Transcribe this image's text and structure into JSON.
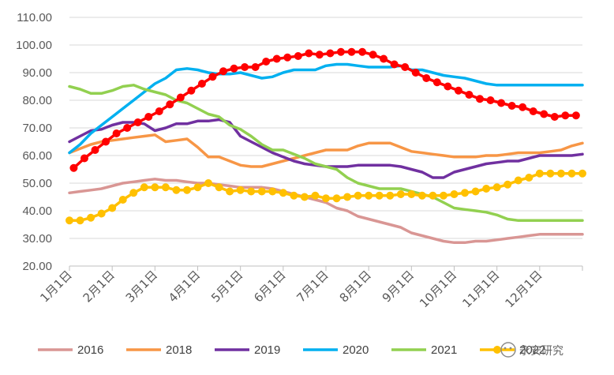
{
  "chart_data": {
    "type": "line",
    "ylim": [
      20,
      110
    ],
    "yticks": [
      "20.00",
      "30.00",
      "40.00",
      "50.00",
      "60.00",
      "70.00",
      "80.00",
      "90.00",
      "100.00",
      "110.00"
    ],
    "xticks": [
      "1月1日",
      "2月1日",
      "3月1日",
      "4月1日",
      "5月1日",
      "6月1日",
      "7月1日",
      "8月1日",
      "9月1日",
      "10月1日",
      "11月1日",
      "12月1日"
    ],
    "grid": "horizontal",
    "legend_position": "bottom",
    "series": [
      {
        "name": "2016",
        "color": "#d99694",
        "markers": false,
        "x": [
          0,
          0.25,
          0.5,
          0.75,
          1,
          1.25,
          1.5,
          1.75,
          2,
          2.25,
          2.5,
          2.75,
          3,
          3.25,
          3.5,
          3.75,
          4,
          4.25,
          4.5,
          4.75,
          5,
          5.25,
          5.5,
          5.75,
          6,
          6.25,
          6.5,
          6.75,
          7,
          7.25,
          7.5,
          7.75,
          8,
          8.25,
          8.5,
          8.75,
          9,
          9.25,
          9.5,
          9.75,
          10,
          10.25,
          10.5,
          10.75,
          11,
          11.25,
          11.5,
          11.75,
          12
        ],
        "values": [
          46.5,
          47,
          47.5,
          48,
          49,
          50,
          50.5,
          51,
          51.5,
          51,
          51,
          50.5,
          50,
          50,
          49.5,
          49,
          48.5,
          48.5,
          48.5,
          48,
          47,
          46,
          45,
          44,
          43,
          41,
          40,
          38,
          37,
          36,
          35,
          34,
          32,
          31,
          30,
          29,
          28.5,
          28.5,
          29,
          29,
          29.5,
          30,
          30.5,
          31,
          31.5,
          31.5,
          31.5,
          31.5,
          31.5
        ]
      },
      {
        "name": "2018",
        "color": "#f79646",
        "markers": false,
        "x": [
          0,
          0.25,
          0.5,
          0.75,
          1,
          1.25,
          1.5,
          1.75,
          2,
          2.25,
          2.5,
          2.75,
          3,
          3.25,
          3.5,
          3.75,
          4,
          4.25,
          4.5,
          4.75,
          5,
          5.25,
          5.5,
          5.75,
          6,
          6.25,
          6.5,
          6.75,
          7,
          7.25,
          7.5,
          7.75,
          8,
          8.25,
          8.5,
          8.75,
          9,
          9.25,
          9.5,
          9.75,
          10,
          10.25,
          10.5,
          10.75,
          11,
          11.25,
          11.5,
          11.75,
          12
        ],
        "values": [
          61,
          62.5,
          64,
          65,
          65.5,
          66,
          66.5,
          67,
          67.5,
          65,
          65.5,
          66,
          63,
          59.5,
          59.5,
          58,
          56.5,
          56,
          56,
          57,
          58,
          59,
          60,
          61,
          62,
          62,
          62,
          63.5,
          64.5,
          64.5,
          64.5,
          63,
          61.5,
          61,
          60.5,
          60,
          59.5,
          59.5,
          59.5,
          60,
          60,
          60.5,
          61,
          61,
          61,
          61.5,
          62,
          63.5,
          64.5
        ]
      },
      {
        "name": "2019",
        "color": "#7030a0",
        "markers": false,
        "x": [
          0,
          0.25,
          0.5,
          0.75,
          1,
          1.25,
          1.5,
          1.75,
          2,
          2.25,
          2.5,
          2.75,
          3,
          3.25,
          3.5,
          3.75,
          4,
          4.25,
          4.5,
          4.75,
          5,
          5.25,
          5.5,
          5.75,
          6,
          6.25,
          6.5,
          6.75,
          7,
          7.25,
          7.5,
          7.75,
          8,
          8.25,
          8.5,
          8.75,
          9,
          9.25,
          9.5,
          9.75,
          10,
          10.25,
          10.5,
          10.75,
          11,
          11.25,
          11.5,
          11.75,
          12
        ],
        "values": [
          65,
          67,
          69,
          69.5,
          71,
          72,
          72,
          71.5,
          69,
          70,
          71.5,
          71.5,
          72.5,
          72.5,
          73,
          72,
          67,
          65,
          63,
          61,
          59.5,
          58,
          57,
          56.5,
          56,
          56,
          56,
          56.5,
          56.5,
          56.5,
          56.5,
          56,
          55,
          54,
          52,
          52,
          54,
          55,
          56,
          57,
          57.5,
          58,
          58,
          59,
          60,
          60,
          60,
          60,
          60.5
        ]
      },
      {
        "name": "2020",
        "color": "#00b0f0",
        "markers": false,
        "x": [
          0,
          0.25,
          0.5,
          0.75,
          1,
          1.25,
          1.5,
          1.75,
          2,
          2.25,
          2.5,
          2.75,
          3,
          3.25,
          3.5,
          3.75,
          4,
          4.25,
          4.5,
          4.75,
          5,
          5.25,
          5.5,
          5.75,
          6,
          6.25,
          6.5,
          6.75,
          7,
          7.25,
          7.5,
          7.75,
          8,
          8.25,
          8.5,
          8.75,
          9,
          9.25,
          9.5,
          9.75,
          10,
          10.25,
          10.5,
          10.75,
          11,
          11.25,
          11.5,
          11.75,
          12
        ],
        "values": [
          61,
          64,
          68,
          71,
          74,
          77,
          80,
          83,
          86,
          88,
          91,
          91.5,
          91,
          90,
          89.5,
          89.5,
          90,
          89,
          88,
          88.5,
          90,
          91,
          91,
          91,
          92.5,
          93,
          93,
          92.5,
          92,
          92,
          92,
          92.5,
          91,
          91,
          90,
          89,
          88.5,
          88,
          87,
          86,
          85.5,
          85.5,
          85.5,
          85.5,
          85.5,
          85.5,
          85.5,
          85.5,
          85.5
        ]
      },
      {
        "name": "2021",
        "color": "#92d050",
        "markers": false,
        "x": [
          0,
          0.25,
          0.5,
          0.75,
          1,
          1.25,
          1.5,
          1.75,
          2,
          2.25,
          2.5,
          2.75,
          3,
          3.25,
          3.5,
          3.75,
          4,
          4.25,
          4.5,
          4.75,
          5,
          5.25,
          5.5,
          5.75,
          6,
          6.25,
          6.5,
          6.75,
          7,
          7.25,
          7.5,
          7.75,
          8,
          8.25,
          8.5,
          8.75,
          9,
          9.25,
          9.5,
          9.75,
          10,
          10.25,
          10.5,
          10.75,
          11,
          11.25,
          11.5,
          11.75,
          12
        ],
        "values": [
          85,
          84,
          82.5,
          82.5,
          83.5,
          85,
          85.5,
          84,
          83,
          82,
          80,
          79,
          77,
          75,
          74,
          71,
          69.5,
          67,
          64,
          62,
          62,
          60.5,
          59,
          57,
          56,
          55,
          52,
          50,
          49,
          48,
          48,
          48,
          47,
          46,
          45,
          43,
          41,
          40.5,
          40,
          39.5,
          38.5,
          37,
          36.5,
          36.5,
          36.5,
          36.5,
          36.5,
          36.5,
          36.5
        ]
      },
      {
        "name": "2022",
        "color": "#ffc000",
        "markers": true,
        "x": [
          0,
          0.25,
          0.5,
          0.75,
          1,
          1.25,
          1.5,
          1.75,
          2,
          2.25,
          2.5,
          2.75,
          3,
          3.25,
          3.5,
          3.75,
          4,
          4.25,
          4.5,
          4.75,
          5,
          5.25,
          5.5,
          5.75,
          6,
          6.25,
          6.5,
          6.75,
          7,
          7.25,
          7.5,
          7.75,
          8,
          8.25,
          8.5,
          8.75,
          9,
          9.25,
          9.5,
          9.75,
          10,
          10.25,
          10.5,
          10.75,
          11,
          11.25,
          11.5,
          11.75,
          12
        ],
        "values": [
          36.5,
          36.5,
          37.5,
          39,
          41,
          44,
          46.5,
          48.5,
          48.5,
          48.5,
          47.5,
          47.5,
          48.5,
          50,
          48.5,
          47,
          47.5,
          47,
          47,
          47,
          46.5,
          45.5,
          45,
          45.5,
          44.5,
          44.5,
          45,
          45.5,
          45.5,
          45.5,
          45.5,
          46,
          46,
          45.5,
          45.5,
          45.5,
          46,
          46.5,
          47,
          48,
          48.5,
          49.5,
          51,
          52,
          53.5,
          53.5,
          53.5,
          53.5,
          53.5
        ]
      },
      {
        "name": "2022-red",
        "color": "#ff0000",
        "markers": true,
        "legend": false,
        "x": [
          0.1,
          0.35,
          0.6,
          0.85,
          1.1,
          1.35,
          1.6,
          1.85,
          2.1,
          2.35,
          2.6,
          2.85,
          3.1,
          3.35,
          3.6,
          3.85,
          4.1,
          4.35,
          4.6,
          4.85,
          5.1,
          5.35,
          5.6,
          5.85,
          6.1,
          6.35,
          6.6,
          6.85,
          7.1,
          7.35,
          7.6,
          7.85,
          8.1,
          8.35,
          8.6,
          8.85,
          9.1,
          9.35,
          9.6,
          9.85,
          10.1,
          10.35,
          10.6,
          10.85,
          11.1,
          11.35,
          11.6,
          11.85
        ],
        "values": [
          55.5,
          59,
          62,
          65,
          68,
          70,
          72,
          74,
          76,
          78.5,
          81,
          83.5,
          86,
          88.5,
          90.5,
          91.5,
          92,
          92,
          94,
          95,
          95.5,
          96,
          97,
          96.5,
          97,
          97.5,
          97.5,
          97.5,
          96.5,
          95,
          93,
          92,
          90,
          88,
          86.5,
          85,
          83.5,
          82,
          80.5,
          80,
          79,
          78,
          77.5,
          76,
          75,
          74,
          74.5,
          74.5
        ]
      }
    ]
  },
  "legend": {
    "items": [
      {
        "label": "2016",
        "color": "#d99694",
        "marker": false
      },
      {
        "label": "2018",
        "color": "#f79646",
        "marker": false
      },
      {
        "label": "2019",
        "color": "#7030a0",
        "marker": false
      },
      {
        "label": "2020",
        "color": "#00b0f0",
        "marker": false
      },
      {
        "label": "2021",
        "color": "#92d050",
        "marker": false
      },
      {
        "label": "2022",
        "color": "#ffc000",
        "marker": true
      }
    ]
  },
  "watermark": {
    "text": "永安研究"
  }
}
